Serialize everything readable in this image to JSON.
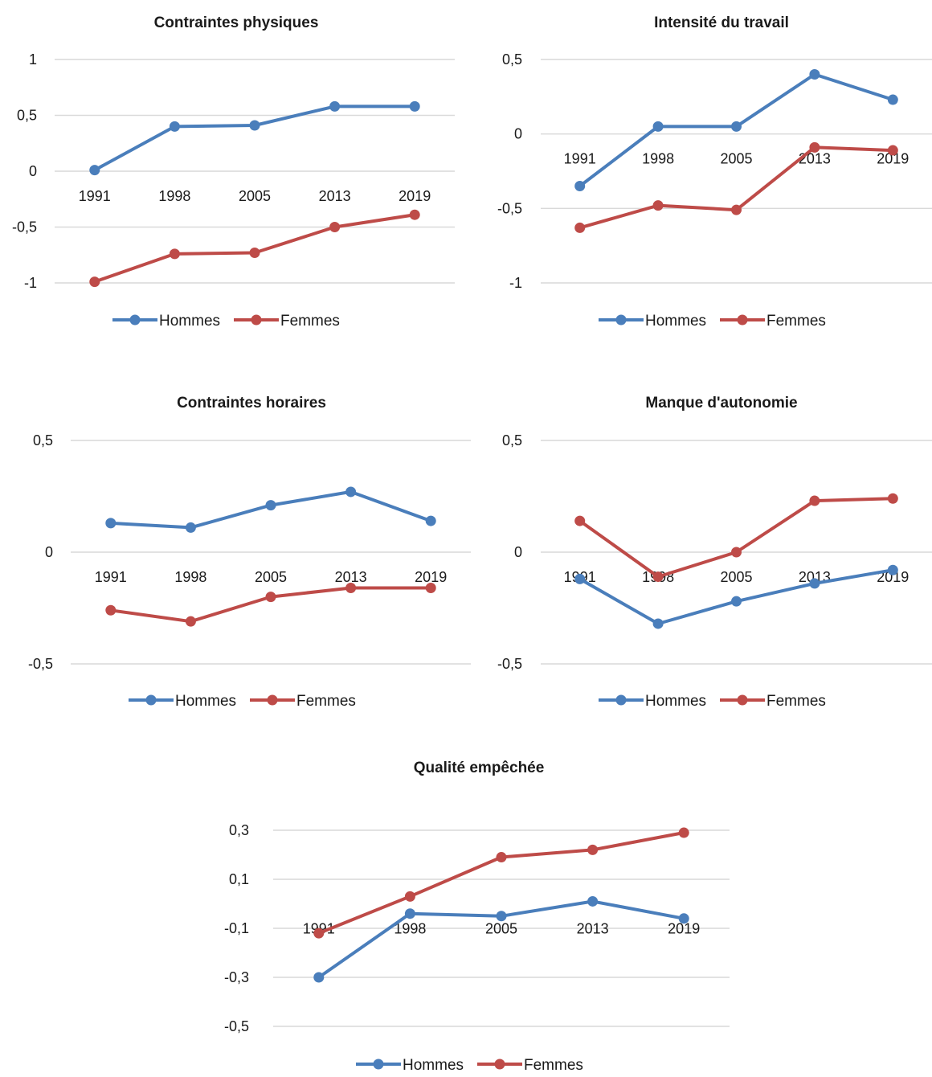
{
  "series_styles": {
    "Hommes": {
      "color": "#4a7ebb"
    },
    "Femmes": {
      "color": "#be4b48"
    }
  },
  "chart_data": [
    {
      "type": "line",
      "title": "Contraintes physiques",
      "categories": [
        "1991",
        "1998",
        "2005",
        "2013",
        "2019"
      ],
      "yticks": [
        1,
        0.5,
        0,
        -0.5,
        -1
      ],
      "ytick_labels": [
        "1",
        "0,5",
        "0",
        "-0,5",
        "-1"
      ],
      "ylim": [
        -1,
        1
      ],
      "grid": true,
      "legend": "bottom",
      "series": [
        {
          "name": "Hommes",
          "values": [
            0.01,
            0.4,
            0.41,
            0.58,
            0.58
          ]
        },
        {
          "name": "Femmes",
          "values": [
            -0.99,
            -0.74,
            -0.73,
            -0.5,
            -0.39
          ]
        }
      ]
    },
    {
      "type": "line",
      "title": "Intensité du travail",
      "categories": [
        "1991",
        "1998",
        "2005",
        "2013",
        "2019"
      ],
      "yticks": [
        0.5,
        0,
        -0.5,
        -1
      ],
      "ytick_labels": [
        "0,5",
        "0",
        "-0,5",
        "-1"
      ],
      "ylim": [
        -1,
        0.5
      ],
      "grid": true,
      "legend": "bottom",
      "series": [
        {
          "name": "Hommes",
          "values": [
            -0.35,
            0.05,
            0.05,
            0.4,
            0.23
          ]
        },
        {
          "name": "Femmes",
          "values": [
            -0.63,
            -0.48,
            -0.51,
            -0.09,
            -0.11
          ]
        }
      ]
    },
    {
      "type": "line",
      "title": "Contraintes horaires",
      "categories": [
        "1991",
        "1998",
        "2005",
        "2013",
        "2019"
      ],
      "yticks": [
        0.5,
        0,
        -0.5
      ],
      "ytick_labels": [
        "0,5",
        "0",
        "-0,5"
      ],
      "ylim": [
        -0.5,
        0.5
      ],
      "grid": true,
      "legend": "bottom",
      "series": [
        {
          "name": "Hommes",
          "values": [
            0.13,
            0.11,
            0.21,
            0.27,
            0.14
          ]
        },
        {
          "name": "Femmes",
          "values": [
            -0.26,
            -0.31,
            -0.2,
            -0.16,
            -0.16
          ]
        }
      ]
    },
    {
      "type": "line",
      "title": "Manque d'autonomie",
      "categories": [
        "1991",
        "1998",
        "2005",
        "2013",
        "2019"
      ],
      "yticks": [
        0.5,
        0,
        -0.5
      ],
      "ytick_labels": [
        "0,5",
        "0",
        "-0,5"
      ],
      "ylim": [
        -0.5,
        0.5
      ],
      "grid": true,
      "legend": "bottom",
      "series": [
        {
          "name": "Hommes",
          "values": [
            -0.12,
            -0.32,
            -0.22,
            -0.14,
            -0.08
          ]
        },
        {
          "name": "Femmes",
          "values": [
            0.14,
            -0.11,
            0.0,
            0.23,
            0.24
          ]
        }
      ]
    },
    {
      "type": "line",
      "title": "Qualité empêchée",
      "categories": [
        "1991",
        "1998",
        "2005",
        "2013",
        "2019"
      ],
      "yticks": [
        0.3,
        0.1,
        -0.1,
        -0.3,
        -0.5
      ],
      "ytick_labels": [
        "0,3",
        "0,1",
        "-0,1",
        "-0,3",
        "-0,5"
      ],
      "ylim": [
        -0.5,
        0.3
      ],
      "grid": true,
      "legend": "bottom",
      "series": [
        {
          "name": "Hommes",
          "values": [
            -0.3,
            -0.04,
            -0.05,
            0.01,
            -0.06
          ]
        },
        {
          "name": "Femmes",
          "values": [
            -0.12,
            0.03,
            0.19,
            0.22,
            0.29
          ]
        }
      ]
    }
  ]
}
